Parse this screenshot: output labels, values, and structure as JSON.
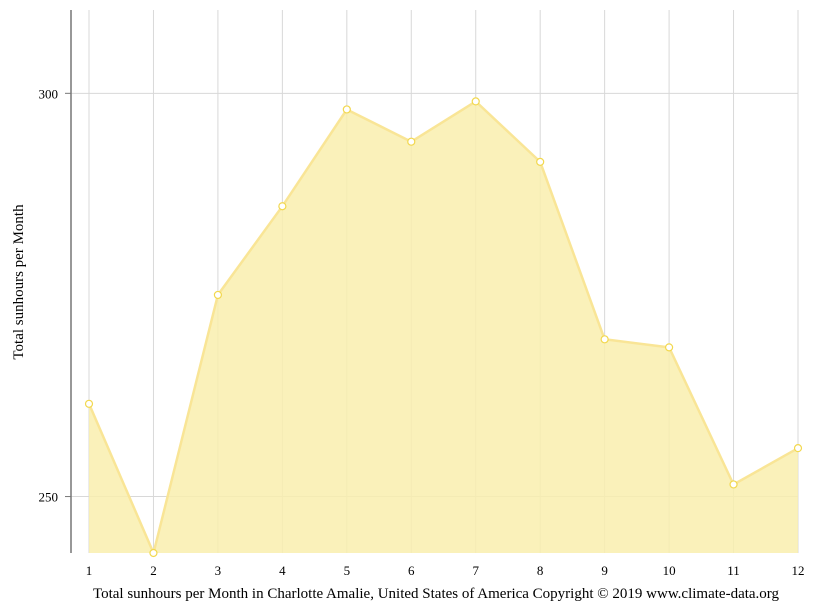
{
  "chart_data": {
    "type": "area",
    "title": "",
    "caption": "Total sunhours per Month in Charlotte Amalie, United States of America Copyright © 2019 www.climate-data.org",
    "xlabel": "",
    "ylabel": "Total sunhours per Month",
    "categories": [
      "1",
      "2",
      "3",
      "4",
      "5",
      "6",
      "7",
      "8",
      "9",
      "10",
      "11",
      "12"
    ],
    "values": [
      261.5,
      243,
      275,
      286,
      298,
      294,
      299,
      291.5,
      269.5,
      268.5,
      251.5,
      256
    ],
    "ylim": [
      243,
      305
    ],
    "yticks": [
      250,
      300
    ],
    "ytick_labels": [
      "250",
      "300"
    ],
    "grid": true,
    "colors": {
      "fill": "#f9eeae",
      "line": "#f9e596",
      "marker_fill": "#ffffff",
      "marker_stroke": "#f2d84f",
      "grid": "#d8d8d8",
      "axis": "#777777"
    }
  }
}
